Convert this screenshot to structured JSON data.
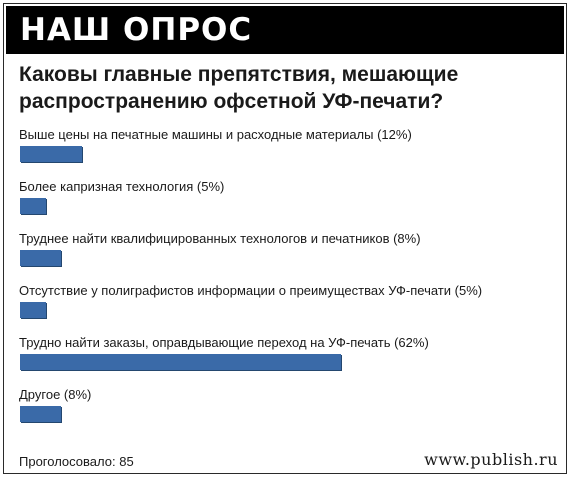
{
  "header": {
    "title": "НАШ ОПРОС"
  },
  "question": "Каковы главные препятствия, мешающие распространению офсетной УФ-печати?",
  "chart_data": {
    "type": "bar",
    "orientation": "horizontal",
    "categories": [
      "Выше цены на печатные машины и расходные материалы (12%)",
      "Более капризная технология (5%)",
      "Труднее найти квалифицированных технологов и печатников (8%)",
      "Отсутствие у полиграфистов информации о преимуществах УФ-печати (5%)",
      "Трудно найти заказы, оправдывающие переход на УФ-печать (62%)",
      "Другое (8%)"
    ],
    "values": [
      12,
      5,
      8,
      5,
      62,
      8
    ],
    "unit": "%",
    "bar_color": "#3a6aa8",
    "grid": false
  },
  "footer": {
    "votes": "Проголосовало: 85",
    "site": "www.publish.ru"
  }
}
